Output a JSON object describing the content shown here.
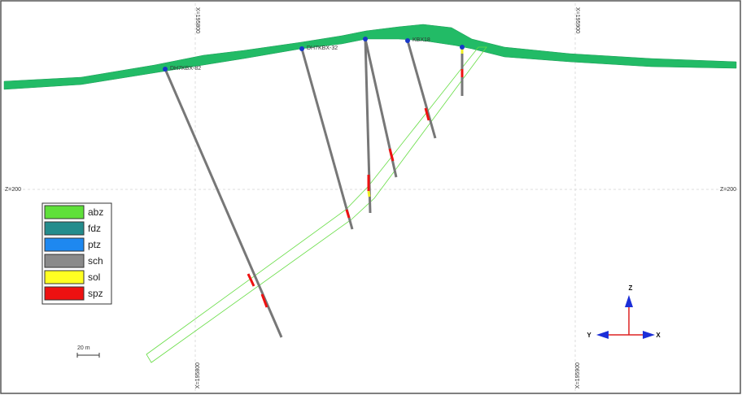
{
  "grid_labels": {
    "top": [
      "X=195800",
      "X=195900"
    ],
    "bottom": [
      "X=195800",
      "X=195900"
    ],
    "left": "Z=200",
    "right": "Z=200"
  },
  "drillholes": [
    "DH7KBX-82",
    "DH7KBX-32",
    "KBX18"
  ],
  "legend": [
    {
      "label": "abz",
      "color": "#5fe03a"
    },
    {
      "label": "fdz",
      "color": "#238c8c"
    },
    {
      "label": "ptz",
      "color": "#1e88f0"
    },
    {
      "label": "sch",
      "color": "#8a8a8a"
    },
    {
      "label": "sol",
      "color": "#ffff22"
    },
    {
      "label": "spz",
      "color": "#ee1111"
    }
  ],
  "scale_bar": "20 m",
  "axes": {
    "z": "Z",
    "y": "Y",
    "x": "X"
  }
}
